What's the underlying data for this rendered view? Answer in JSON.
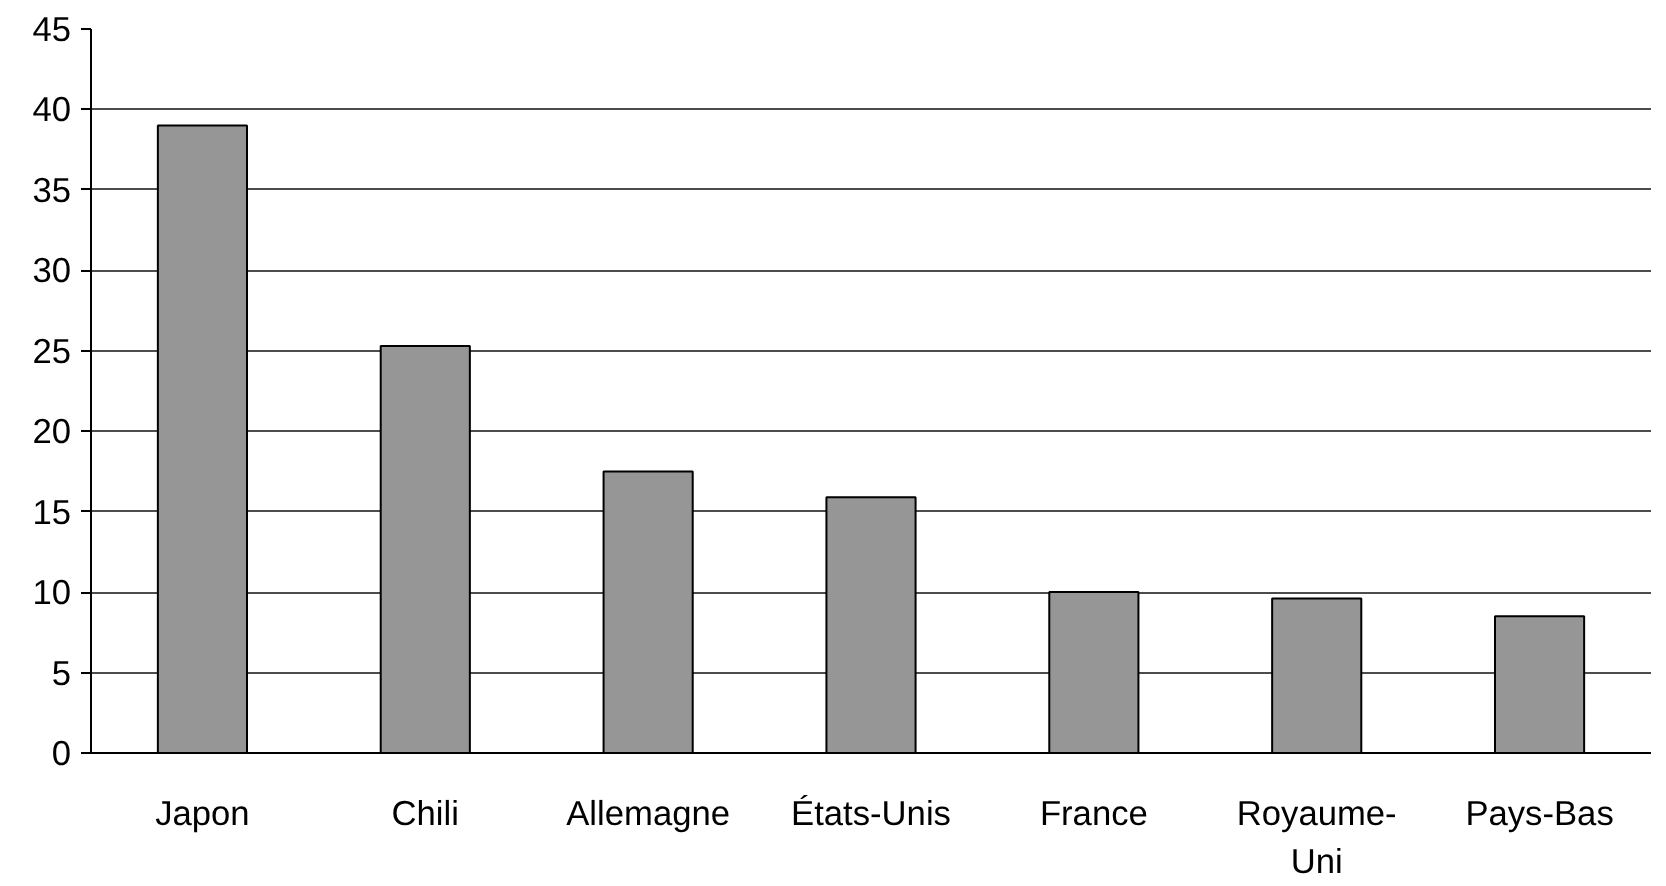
{
  "chart_data": {
    "type": "bar",
    "categories": [
      "Japon",
      "Chili",
      "Allemagne",
      "États-Unis",
      "France",
      "Royaume-Uni",
      "Pays-Bas"
    ],
    "values": [
      39,
      25.3,
      17.5,
      15.9,
      10,
      9.6,
      8.5
    ],
    "color": "#969696",
    "ylim": [
      0,
      45
    ],
    "yticks": [
      0,
      5,
      10,
      15,
      20,
      25,
      30,
      35,
      40,
      45
    ],
    "grid": "y"
  }
}
